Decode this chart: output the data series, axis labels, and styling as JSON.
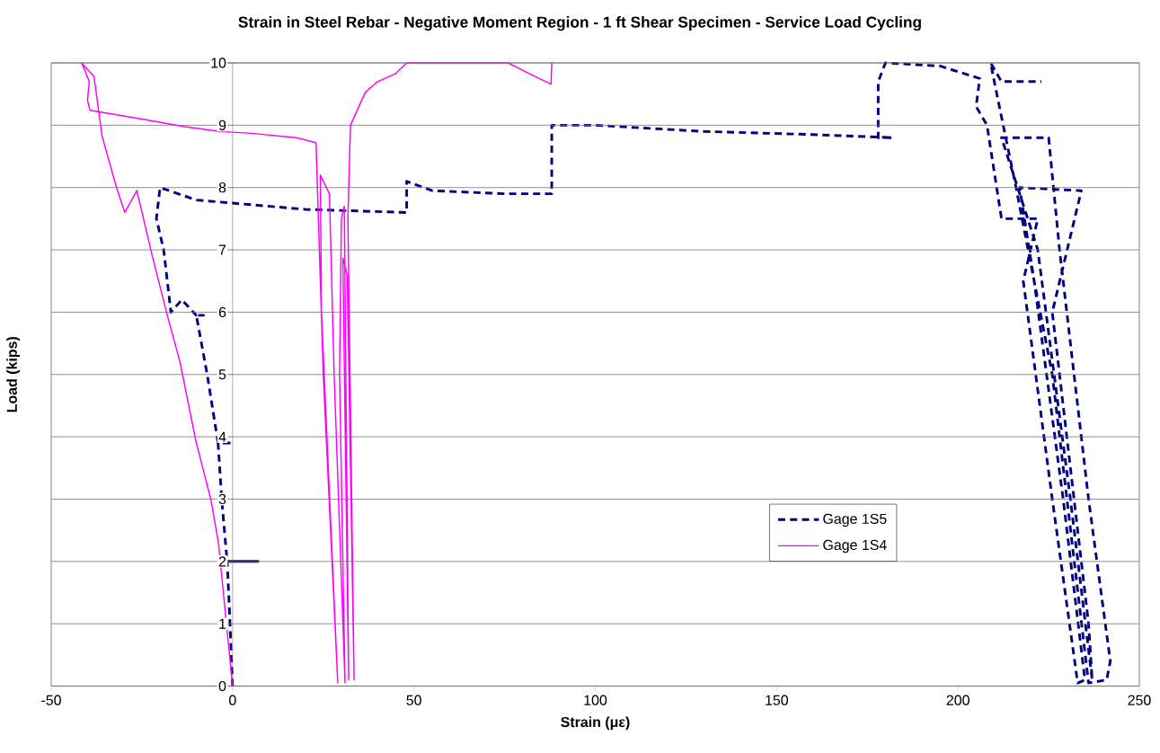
{
  "chart_data": {
    "type": "line",
    "title": "Strain in Steel Rebar - Negative Moment Region - 1 ft Shear Specimen - Service Load Cycling",
    "xlabel": "Strain (με)",
    "ylabel": "Load (kips)",
    "xlim": [
      -50,
      250
    ],
    "xticks": [
      -50,
      0,
      50,
      100,
      150,
      200,
      250
    ],
    "ylim": [
      0,
      10
    ],
    "yticks": [
      0,
      1,
      2,
      3,
      4,
      5,
      6,
      7,
      8,
      9,
      10
    ],
    "grid": "y",
    "legend": "bottom right",
    "series": [
      {
        "name": "Gage 1S5",
        "color": "#000080",
        "line_style": "dashed",
        "x": [
          0,
          -0.5,
          -1,
          -1.5,
          7,
          -1.5,
          -3,
          -4,
          0,
          -4,
          -7,
          -10,
          -8,
          -10,
          -14,
          -17,
          -19,
          -21,
          -20,
          -15,
          -10,
          0,
          20,
          48,
          48,
          55,
          75,
          88,
          88,
          100,
          130,
          160,
          182,
          178,
          178,
          180,
          195,
          206,
          205,
          208,
          212,
          222,
          218,
          226,
          233,
          235,
          229,
          221,
          217,
          234,
          226,
          236,
          237,
          231,
          222,
          212,
          225,
          228,
          236,
          242,
          241,
          236,
          226,
          216,
          210,
          209,
          212,
          223
        ],
        "values": [
          0,
          0.7,
          1.4,
          2.0,
          2.0,
          2.0,
          3.0,
          3.9,
          3.9,
          3.9,
          5.0,
          5.95,
          5.95,
          5.95,
          6.2,
          6.0,
          7.0,
          7.5,
          8.0,
          7.9,
          7.8,
          7.75,
          7.65,
          7.6,
          8.1,
          7.95,
          7.9,
          7.9,
          9.0,
          9.0,
          8.9,
          8.85,
          8.8,
          8.8,
          9.7,
          10,
          9.95,
          9.75,
          9.3,
          9.0,
          7.5,
          7.5,
          6.5,
          3,
          0.05,
          0.1,
          3,
          6.5,
          8.0,
          7.95,
          6,
          1,
          0.1,
          3,
          7,
          8.8,
          8.8,
          7,
          3,
          0.4,
          0.1,
          0.05,
          5,
          8,
          9.7,
          10,
          9.7,
          9.7
        ]
      },
      {
        "name": "Gage 1S4",
        "color": "#ff00ff",
        "line_style": "solid",
        "x": [
          0,
          -3.9,
          -6,
          -10,
          -14.5,
          -18,
          -22,
          -26.4,
          -29.7,
          -32,
          -36,
          -36.5,
          -38.2,
          -41.6,
          -39.5,
          -40,
          -39.3,
          -25,
          -13.5,
          -3.6,
          5.3,
          17.6,
          23,
          25,
          29,
          24.5,
          24.2,
          26.7,
          28,
          31,
          29.5,
          30,
          30.8,
          32,
          30.4,
          31.6,
          33.5,
          31.8,
          32.5,
          36.6,
          40,
          45,
          48,
          76,
          81,
          87.8,
          88
        ],
        "values": [
          0,
          2.3,
          3.0,
          3.9,
          5.2,
          5.95,
          6.87,
          7.95,
          7.6,
          8.0,
          8.83,
          9.05,
          9.78,
          10,
          9.7,
          9.4,
          9.24,
          9.1,
          8.98,
          8.9,
          8.87,
          8.8,
          8.72,
          5,
          0.05,
          6,
          8.2,
          7.9,
          5,
          0.05,
          5,
          7.5,
          7.7,
          0.1,
          6.87,
          6.6,
          0.1,
          7.5,
          9.0,
          9.53,
          9.7,
          9.83,
          10,
          10,
          9.85,
          9.66,
          10
        ]
      }
    ]
  }
}
